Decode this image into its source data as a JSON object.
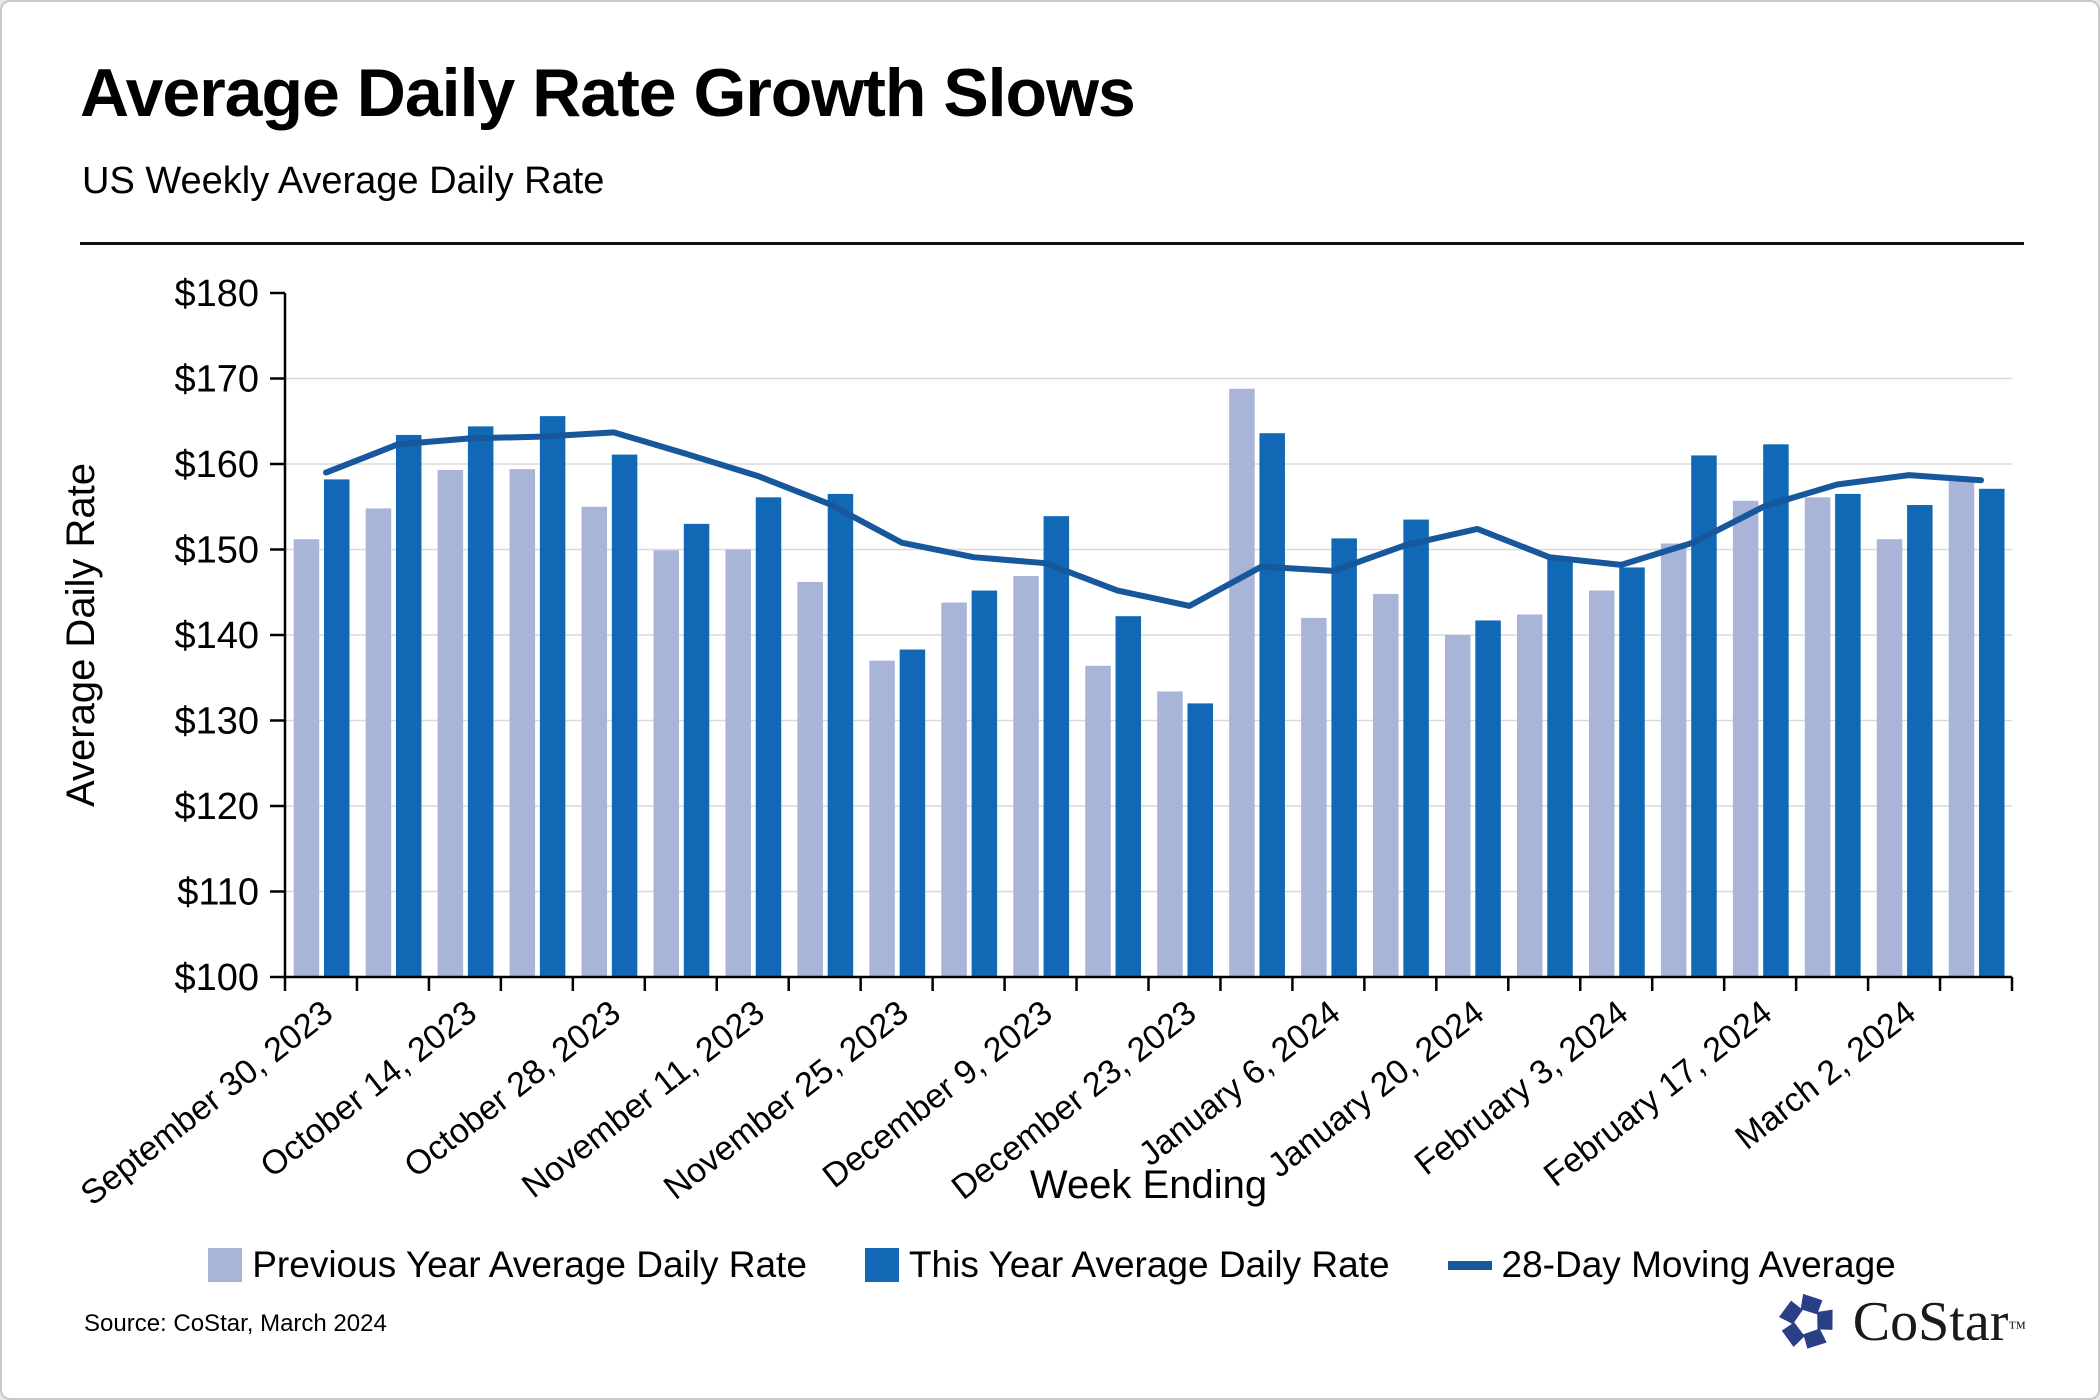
{
  "page": {
    "title": "Average Daily Rate Growth Slows",
    "subtitle": "US Weekly Average Daily Rate",
    "source": "Source: CoStar, March 2024",
    "logo_text": "CoStar",
    "logo_tm": "TM"
  },
  "chart_data": {
    "type": "bar",
    "title": "Average Daily Rate Growth Slows",
    "subtitle": "US Weekly Average Daily Rate",
    "x_axis_title": "Week Ending",
    "y_axis_title": "Average Daily Rate",
    "ylim": [
      100,
      180
    ],
    "y_tick_step": 10,
    "y_prefix": "$",
    "y_ticks": [
      "$100",
      "$110",
      "$120",
      "$130",
      "$140",
      "$150",
      "$160",
      "$170",
      "$180"
    ],
    "grid": true,
    "legend_position": "bottom",
    "categories": [
      "September 30, 2023",
      "",
      "October 14, 2023",
      "",
      "October 28, 2023",
      "",
      "November 11, 2023",
      "",
      "November 25, 2023",
      "",
      "December 9, 2023",
      "",
      "December 23, 2023",
      "",
      "January 6, 2024",
      "",
      "January 20, 2024",
      "",
      "February 3, 2024",
      "",
      "February 17, 2024",
      "",
      "March 2, 2024",
      ""
    ],
    "series": [
      {
        "name": "Previous Year Average Daily Rate",
        "type": "bar",
        "color": "#a8b4d8",
        "values": [
          151.2,
          154.8,
          159.3,
          159.4,
          155.0,
          149.9,
          150.0,
          146.2,
          137.0,
          143.8,
          146.9,
          136.4,
          133.4,
          168.8,
          142.0,
          144.8,
          140.0,
          142.4,
          145.2,
          150.7,
          155.7,
          156.1,
          151.2,
          158.0
        ]
      },
      {
        "name": "This Year Average Daily Rate",
        "type": "bar",
        "color": "#1168b4",
        "values": [
          158.2,
          163.4,
          164.4,
          165.6,
          161.1,
          153.0,
          156.1,
          156.5,
          138.3,
          145.2,
          153.9,
          142.2,
          132.0,
          163.6,
          151.3,
          153.5,
          141.7,
          149.1,
          147.9,
          161.0,
          162.3,
          156.5,
          155.2,
          157.1
        ]
      },
      {
        "name": "28-Day Moving Average",
        "type": "line",
        "color": "#17579b",
        "values": [
          159.0,
          162.3,
          163.0,
          163.2,
          163.7,
          161.2,
          158.6,
          155.3,
          150.8,
          149.1,
          148.4,
          145.2,
          143.4,
          148.0,
          147.5,
          150.5,
          152.4,
          149.1,
          148.2,
          150.8,
          155.1,
          157.6,
          158.7,
          158.1
        ]
      }
    ],
    "colors": {
      "gridline": "#d9d9d9",
      "axis": "#000000",
      "logo_navy": "#2a3f85"
    }
  }
}
